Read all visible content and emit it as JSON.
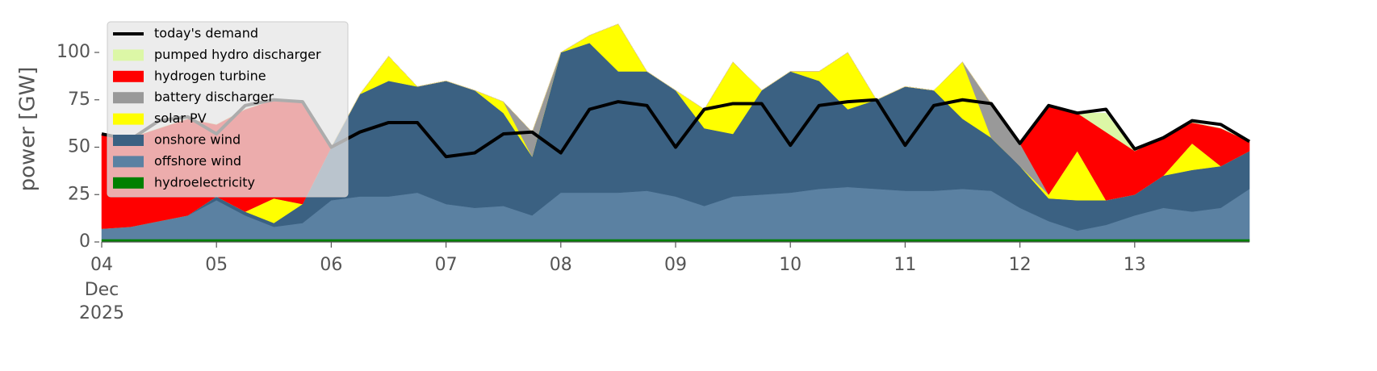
{
  "chart_data": {
    "type": "stacked-area",
    "ylabel": "power [GW]",
    "x_month_label": "Dec",
    "x_year_label": "2025",
    "x": [
      4,
      4.25,
      4.5,
      4.75,
      5,
      5.25,
      5.5,
      5.75,
      6,
      6.25,
      6.5,
      6.75,
      7,
      7.25,
      7.5,
      7.75,
      8,
      8.25,
      8.5,
      8.75,
      9,
      9.25,
      9.5,
      9.75,
      10,
      10.25,
      10.5,
      10.75,
      11,
      11.25,
      11.5,
      11.75,
      12,
      12.25,
      12.5,
      12.75,
      13,
      13.25,
      13.5,
      13.75,
      14
    ],
    "xlim": [
      4,
      14
    ],
    "xticks": [
      {
        "value": 4,
        "label": "04"
      },
      {
        "value": 5,
        "label": "05"
      },
      {
        "value": 6,
        "label": "06"
      },
      {
        "value": 7,
        "label": "07"
      },
      {
        "value": 8,
        "label": "08"
      },
      {
        "value": 9,
        "label": "09"
      },
      10,
      11,
      12,
      13
    ],
    "ylim": [
      0,
      120
    ],
    "yticks": [
      0,
      25,
      50,
      75,
      100
    ],
    "demand": {
      "name": "today's demand",
      "color": "#000000",
      "values": [
        57,
        54,
        64,
        66,
        57,
        72,
        75,
        74,
        50,
        58,
        63,
        63,
        45,
        47,
        57,
        58,
        47,
        70,
        74,
        72,
        50,
        70,
        73,
        73,
        51,
        72,
        74,
        75,
        51,
        72,
        75,
        73,
        52,
        72,
        68,
        70,
        49,
        55,
        64,
        62,
        53
      ]
    },
    "series": [
      {
        "name": "pumped hydro discharger",
        "color": "#dcf7a6",
        "values": [
          0,
          0,
          0,
          0,
          0,
          0,
          0,
          0,
          0,
          0,
          0,
          0,
          0,
          0,
          0,
          0,
          0,
          0,
          0,
          0,
          0,
          0,
          0,
          0,
          0,
          0,
          0,
          0,
          0,
          0,
          0,
          0,
          0,
          0,
          0,
          10,
          0,
          0,
          0,
          0,
          0
        ]
      },
      {
        "name": "hydrogen turbine",
        "color": "#ff0000",
        "values": [
          50,
          47,
          49,
          51,
          38,
          54,
          52,
          54,
          0,
          0,
          0,
          0,
          0,
          0,
          0,
          0,
          0,
          0,
          0,
          0,
          0,
          0,
          0,
          0,
          0,
          0,
          0,
          0,
          0,
          0,
          0,
          0,
          0,
          47,
          20,
          36,
          23,
          20,
          11,
          20,
          5
        ]
      },
      {
        "name": "battery discharger",
        "color": "#999999",
        "values": [
          0,
          0,
          0,
          0,
          0,
          0,
          0,
          0,
          0,
          0,
          0,
          0,
          0,
          0,
          0,
          13,
          0,
          0,
          0,
          0,
          0,
          0,
          0,
          0,
          0,
          0,
          0,
          0,
          0,
          0,
          0,
          18,
          12,
          0,
          0,
          0,
          0,
          0,
          0,
          0,
          0
        ]
      },
      {
        "name": "solar PV",
        "color": "#ffff00",
        "values": [
          0,
          0,
          0,
          0,
          0,
          0,
          13,
          0,
          0,
          0,
          13,
          0,
          0,
          0,
          6,
          0,
          0,
          4,
          25,
          0,
          0,
          10,
          38,
          0,
          0,
          5,
          30,
          0,
          0,
          0,
          30,
          0,
          0,
          2,
          26,
          0,
          0,
          0,
          14,
          0,
          0
        ]
      },
      {
        "name": "onshore wind",
        "color": "#3b6182",
        "values": [
          0,
          0,
          0,
          0,
          2,
          2,
          2,
          10,
          28,
          54,
          61,
          56,
          65,
          62,
          49,
          31,
          74,
          79,
          64,
          63,
          56,
          41,
          33,
          55,
          64,
          57,
          41,
          47,
          55,
          53,
          37,
          28,
          22,
          12,
          16,
          13,
          11,
          17,
          22,
          22,
          20
        ]
      },
      {
        "name": "offshore wind",
        "color": "#5b81a2",
        "values": [
          5.5,
          6.5,
          9.5,
          12.5,
          20.5,
          12.5,
          6.5,
          8.5,
          20.5,
          22.5,
          22.5,
          24.5,
          18.5,
          16.5,
          17.5,
          12.5,
          24.5,
          24.5,
          24.5,
          25.5,
          22.5,
          17.5,
          22.5,
          23.5,
          24.5,
          26.5,
          27.5,
          26.5,
          25.5,
          25.5,
          26.5,
          25.5,
          16.5,
          9.5,
          4.5,
          7.5,
          12.5,
          16.5,
          14.5,
          16.5,
          26.5
        ]
      },
      {
        "name": "hydroelectricity",
        "color": "#008000",
        "values": [
          1.5,
          1.5,
          1.5,
          1.5,
          1.5,
          1.5,
          1.5,
          1.5,
          1.5,
          1.5,
          1.5,
          1.5,
          1.5,
          1.5,
          1.5,
          1.5,
          1.5,
          1.5,
          1.5,
          1.5,
          1.5,
          1.5,
          1.5,
          1.5,
          1.5,
          1.5,
          1.5,
          1.5,
          1.5,
          1.5,
          1.5,
          1.5,
          1.5,
          1.5,
          1.5,
          1.5,
          1.5,
          1.5,
          1.5,
          1.5,
          1.5
        ]
      }
    ]
  }
}
